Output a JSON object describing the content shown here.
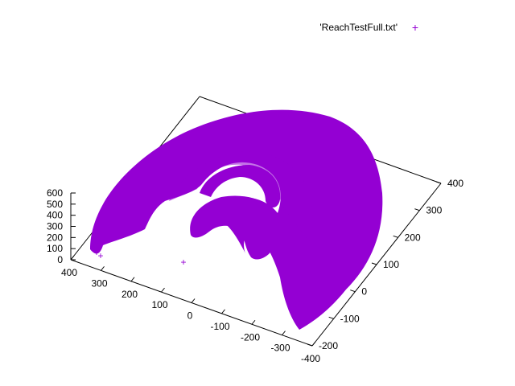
{
  "chart_data": {
    "type": "scatter",
    "view": "3d-surface-splot",
    "series": [
      {
        "name": "'ReachTestFull.txt'",
        "marker": "plus",
        "color": "#9400d3"
      }
    ],
    "legend": {
      "position": "top-right",
      "label": "'ReachTestFull.txt'",
      "marker_glyph": "+"
    },
    "axes": {
      "x": {
        "range": [
          -400,
          400
        ],
        "ticks": [
          "400",
          "300",
          "200",
          "100",
          "0",
          "-100",
          "-200",
          "-300",
          "-400"
        ]
      },
      "y": {
        "range": [
          -200,
          400
        ],
        "ticks": [
          "-200",
          "-100",
          "0",
          "100",
          "200",
          "300",
          "400"
        ]
      },
      "z": {
        "range": [
          0,
          600
        ],
        "ticks": [
          "0",
          "100",
          "200",
          "300",
          "400",
          "500",
          "600"
        ]
      }
    },
    "xlabel": "",
    "ylabel": "",
    "zlabel": "",
    "title": "",
    "grid": false,
    "note_shape": "hemispherical reach envelope projected onto x-y plane"
  }
}
